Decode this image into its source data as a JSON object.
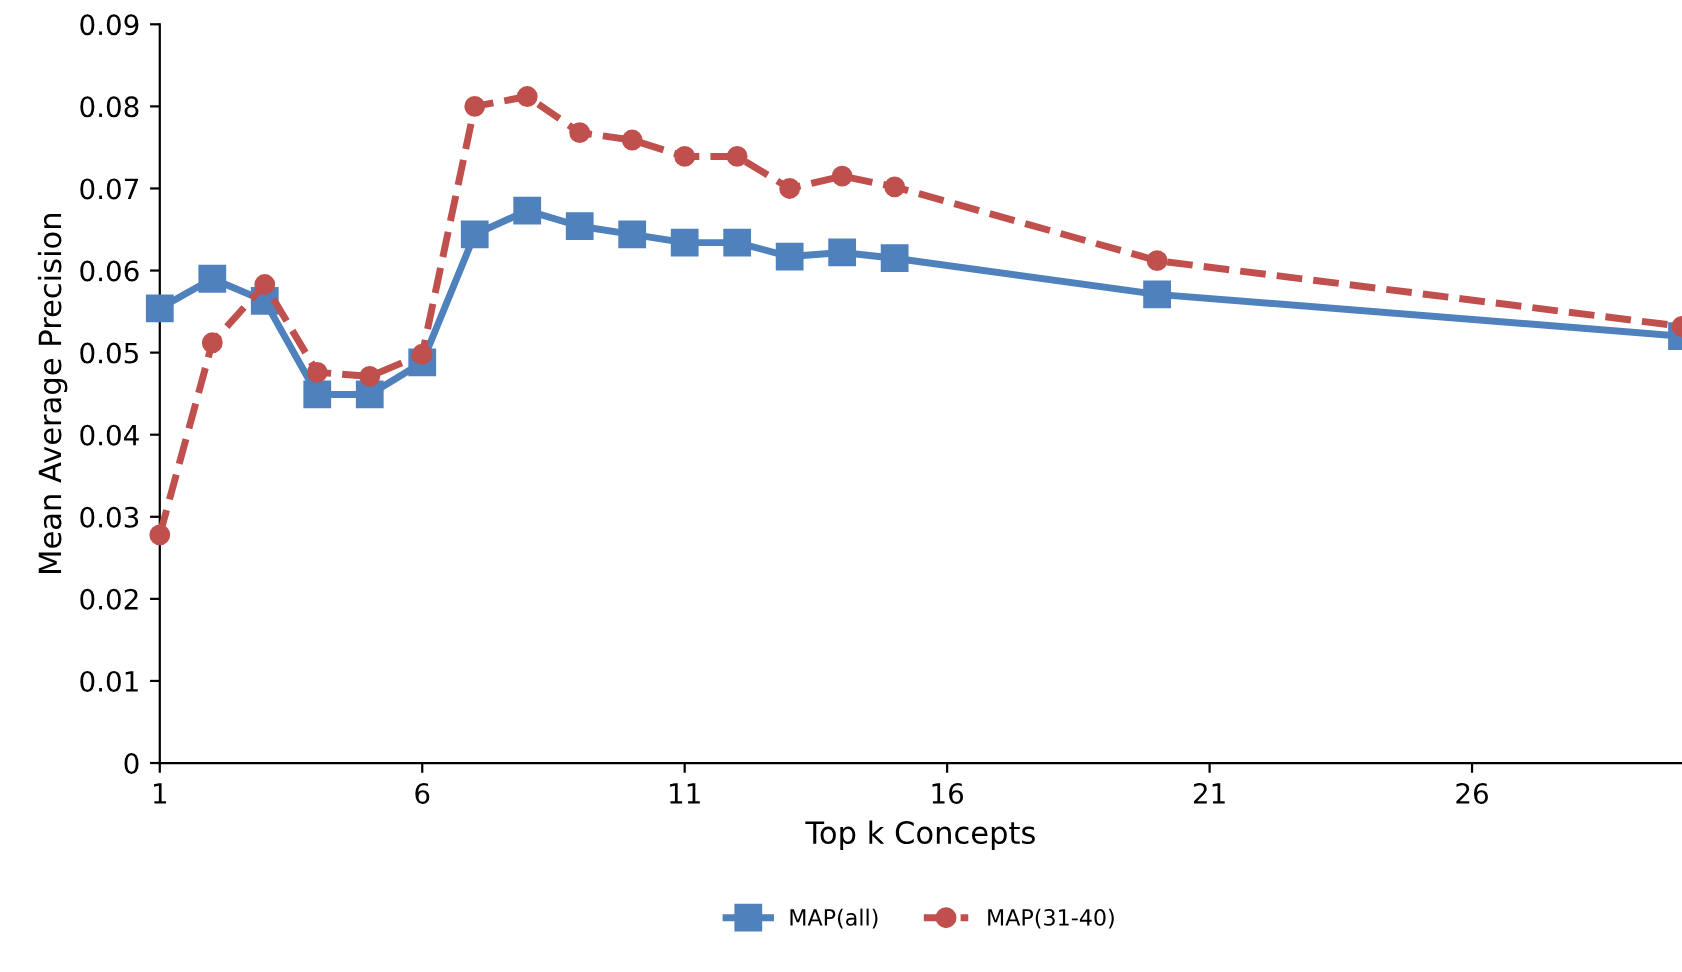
{
  "chart_data": {
    "type": "line",
    "xlabel": "Top k Concepts",
    "ylabel": "Mean Average Precision",
    "xlim": [
      1,
      30
    ],
    "xticks": [
      1,
      6,
      11,
      16,
      21,
      26
    ],
    "ylim": [
      0,
      0.09
    ],
    "yticks": [
      0,
      0.01,
      0.02,
      0.03,
      0.04,
      0.05,
      0.06,
      0.07,
      0.08,
      0.09
    ],
    "grid": false,
    "legend": "bottom",
    "series": [
      {
        "name": "MAP(all)",
        "color": "#4f81bd",
        "marker": "square",
        "line_style": "solid",
        "x": [
          1,
          2,
          3,
          4,
          5,
          6,
          7,
          8,
          9,
          10,
          11,
          12,
          13,
          14,
          15,
          20,
          30
        ],
        "values": [
          0.0554,
          0.059,
          0.0563,
          0.0449,
          0.0449,
          0.0488,
          0.0644,
          0.0673,
          0.0654,
          0.0644,
          0.0634,
          0.0634,
          0.0617,
          0.0622,
          0.0615,
          0.0571,
          0.052
        ]
      },
      {
        "name": "MAP(31-40)",
        "color": "#c0504d",
        "marker": "circle",
        "line_style": "dashed",
        "x": [
          1,
          2,
          3,
          4,
          5,
          6,
          7,
          8,
          9,
          10,
          11,
          12,
          13,
          14,
          15,
          20,
          30
        ],
        "values": [
          0.0278,
          0.0512,
          0.0583,
          0.0476,
          0.0471,
          0.0498,
          0.08,
          0.0812,
          0.0768,
          0.0759,
          0.0739,
          0.0739,
          0.07,
          0.0715,
          0.0702,
          0.0612,
          0.0532
        ]
      }
    ]
  }
}
